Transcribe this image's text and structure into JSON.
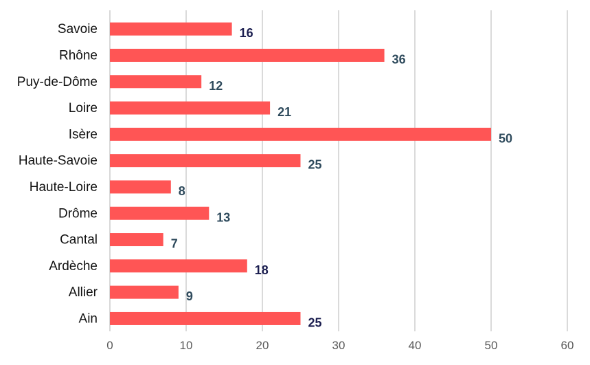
{
  "chart_data": {
    "type": "bar",
    "orientation": "horizontal",
    "categories": [
      "Savoie",
      "Rhône",
      "Puy-de-Dôme",
      "Loire",
      "Isère",
      "Haute-Savoie",
      "Haute-Loire",
      "Drôme",
      "Cantal",
      "Ardèche",
      "Allier",
      "Ain"
    ],
    "values": [
      16,
      36,
      12,
      21,
      50,
      25,
      8,
      13,
      7,
      18,
      9,
      25
    ],
    "data_labels": [
      "16",
      "36",
      "12",
      "21",
      "50",
      "25",
      "8",
      "13",
      "7",
      "18",
      "9",
      "25"
    ],
    "label_colors": [
      "#1a1d4f",
      "#2e4a5c",
      "#2e4a5c",
      "#2e4a5c",
      "#2e4a5c",
      "#2e4a5c",
      "#2e4a5c",
      "#2e4a5c",
      "#2e4a5c",
      "#1a1d4f",
      "#2e4a5c",
      "#1a1d4f"
    ],
    "xlim": [
      0,
      60
    ],
    "x_ticks": [
      "0",
      "10",
      "20",
      "30",
      "40",
      "50",
      "60"
    ],
    "grid": true,
    "legend": "none",
    "title": "",
    "xlabel": "",
    "ylabel": "",
    "bar_color": "#ff5555"
  }
}
